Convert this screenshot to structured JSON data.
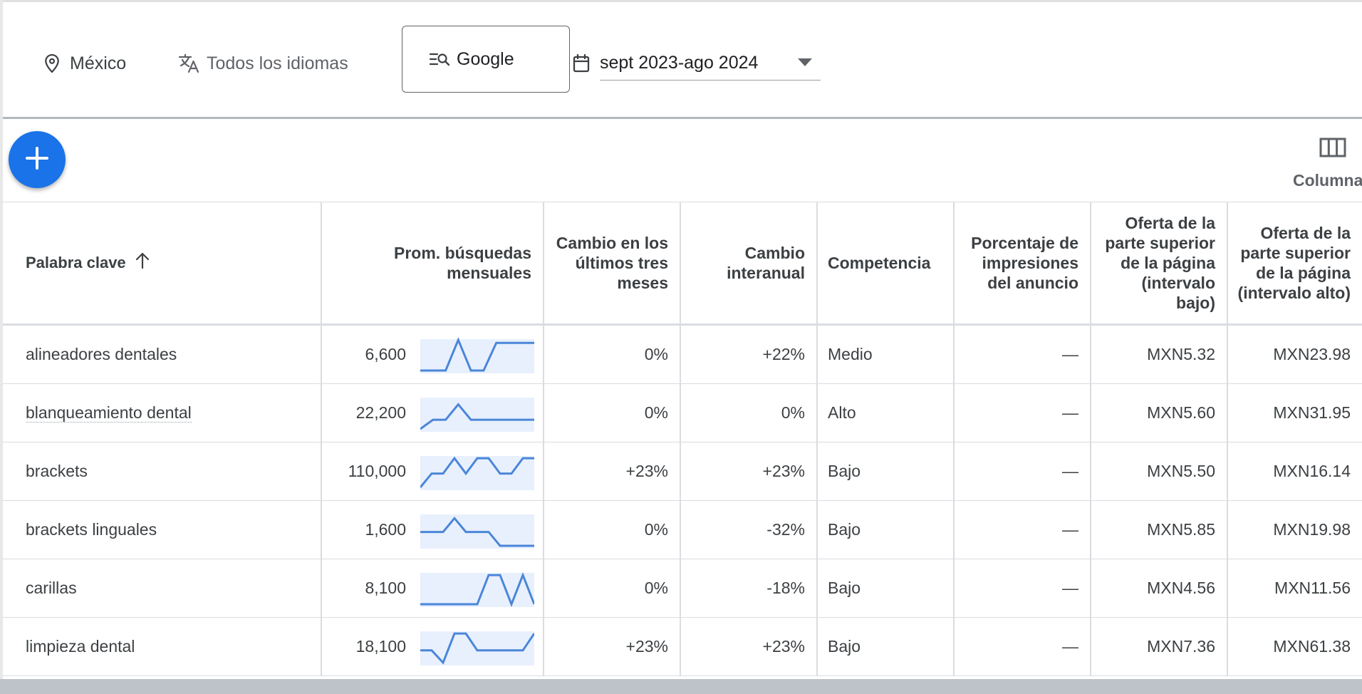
{
  "filters": {
    "location": "México",
    "language": "Todos los idiomas",
    "network": "Google",
    "date_range": "sept 2023-ago 2024"
  },
  "toolbar": {
    "add_icon": "plus-icon",
    "columns_label": "Columnas"
  },
  "table": {
    "headers": {
      "keyword": "Palabra clave",
      "avg_searches": "Prom. búsquedas mensuales",
      "three_month_change": "Cambio en los últimos tres meses",
      "yoy_change": "Cambio interanual",
      "competition": "Competencia",
      "ad_impression_share": "Porcentaje de impresiones del anuncio",
      "top_bid_low": "Oferta de la parte superior de la página (intervalo bajo)",
      "top_bid_high": "Oferta de la parte superior de la página (intervalo alto)"
    },
    "rows": [
      {
        "keyword": "alineadores dentales",
        "volume": "6,600",
        "trend": [
          0,
          0,
          0,
          1,
          0,
          0,
          0.9,
          0.9,
          0.9,
          0.9
        ],
        "three_month": "0%",
        "yoy": "+22%",
        "competition": "Medio",
        "impression_share": "—",
        "bid_low": "MXN5.32",
        "bid_high": "MXN23.98"
      },
      {
        "keyword": "blanqueamiento dental",
        "volume": "22,200",
        "trend": [
          0,
          0.3,
          0.3,
          0.8,
          0.3,
          0.3,
          0.3,
          0.3,
          0.3,
          0.3
        ],
        "three_month": "0%",
        "yoy": "0%",
        "competition": "Alto",
        "impression_share": "—",
        "bid_low": "MXN5.60",
        "bid_high": "MXN31.95"
      },
      {
        "keyword": "brackets",
        "volume": "110,000",
        "trend": [
          0,
          0.45,
          0.45,
          0.95,
          0.45,
          0.95,
          0.95,
          0.45,
          0.45,
          0.95,
          0.95
        ],
        "three_month": "+23%",
        "yoy": "+23%",
        "competition": "Bajo",
        "impression_share": "—",
        "bid_low": "MXN5.50",
        "bid_high": "MXN16.14"
      },
      {
        "keyword": "brackets linguales",
        "volume": "1,600",
        "trend": [
          0.45,
          0.45,
          0.45,
          0.9,
          0.45,
          0.45,
          0.45,
          0,
          0,
          0,
          0
        ],
        "three_month": "0%",
        "yoy": "-32%",
        "competition": "Bajo",
        "impression_share": "—",
        "bid_low": "MXN5.85",
        "bid_high": "MXN19.98"
      },
      {
        "keyword": "carillas",
        "volume": "8,100",
        "trend": [
          0,
          0,
          0,
          0,
          0,
          0,
          0.95,
          0.95,
          0,
          0.95,
          0
        ],
        "three_month": "0%",
        "yoy": "-18%",
        "competition": "Bajo",
        "impression_share": "—",
        "bid_low": "MXN4.56",
        "bid_high": "MXN11.56"
      },
      {
        "keyword": "limpieza dental",
        "volume": "18,100",
        "trend": [
          0.4,
          0.4,
          0,
          0.95,
          0.95,
          0.4,
          0.4,
          0.4,
          0.4,
          0.4,
          0.95
        ],
        "three_month": "+23%",
        "yoy": "+23%",
        "competition": "Bajo",
        "impression_share": "—",
        "bid_low": "MXN7.36",
        "bid_high": "MXN61.38"
      }
    ]
  },
  "colors": {
    "accent": "#1a73e8",
    "sparkline": "#4a86d8",
    "sparkline_fill": "#e8f0fe"
  }
}
